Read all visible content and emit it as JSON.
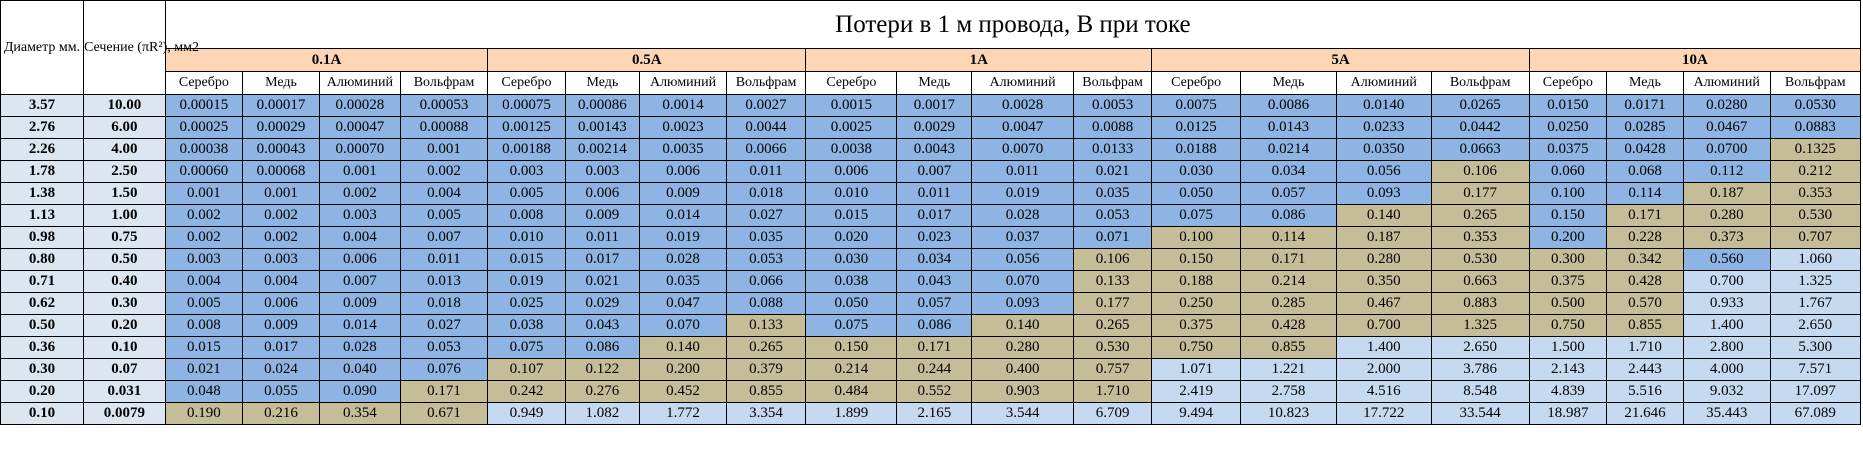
{
  "header": {
    "diameter_label": "Диаметр мм.",
    "section_label": "Сечение (πR²), мм2",
    "title": "Потери в 1 м провода, В при токе"
  },
  "currents": [
    "0.1A",
    "0.5A",
    "1A",
    "5A",
    "10A"
  ],
  "materials": [
    "Серебро",
    "Медь",
    "Алюминий",
    "Вольфрам"
  ],
  "colors": {
    "blue": "#8db4e2",
    "tan": "#c4bd97",
    "light": "#c5d9f1",
    "current_header": "#fcd5b4",
    "left_column": "#dce6f1"
  },
  "rows": [
    {
      "diameter": "3.57",
      "section": "10.00",
      "values": [
        "0.00015",
        "0.00017",
        "0.00028",
        "0.00053",
        "0.00075",
        "0.00086",
        "0.0014",
        "0.0027",
        "0.0015",
        "0.0017",
        "0.0028",
        "0.0053",
        "0.0075",
        "0.0086",
        "0.0140",
        "0.0265",
        "0.0150",
        "0.0171",
        "0.0280",
        "0.0530"
      ],
      "shades": "bbbbbbbbbbbbbbbbbbbb"
    },
    {
      "diameter": "2.76",
      "section": "6.00",
      "values": [
        "0.00025",
        "0.00029",
        "0.00047",
        "0.00088",
        "0.00125",
        "0.00143",
        "0.0023",
        "0.0044",
        "0.0025",
        "0.0029",
        "0.0047",
        "0.0088",
        "0.0125",
        "0.0143",
        "0.0233",
        "0.0442",
        "0.0250",
        "0.0285",
        "0.0467",
        "0.0883"
      ],
      "shades": "bbbbbbbbbbbbbbbbbbbb"
    },
    {
      "diameter": "2.26",
      "section": "4.00",
      "values": [
        "0.00038",
        "0.00043",
        "0.00070",
        "0.001",
        "0.00188",
        "0.00214",
        "0.0035",
        "0.0066",
        "0.0038",
        "0.0043",
        "0.0070",
        "0.0133",
        "0.0188",
        "0.0214",
        "0.0350",
        "0.0663",
        "0.0375",
        "0.0428",
        "0.0700",
        "0.1325"
      ],
      "shades": "bbbbbbbbbbbbbbbbbbbt"
    },
    {
      "diameter": "1.78",
      "section": "2.50",
      "values": [
        "0.00060",
        "0.00068",
        "0.001",
        "0.002",
        "0.003",
        "0.003",
        "0.006",
        "0.011",
        "0.006",
        "0.007",
        "0.011",
        "0.021",
        "0.030",
        "0.034",
        "0.056",
        "0.106",
        "0.060",
        "0.068",
        "0.112",
        "0.212"
      ],
      "shades": "bbbbbbbbbbbbbbbtbbbt"
    },
    {
      "diameter": "1.38",
      "section": "1.50",
      "values": [
        "0.001",
        "0.001",
        "0.002",
        "0.004",
        "0.005",
        "0.006",
        "0.009",
        "0.018",
        "0.010",
        "0.011",
        "0.019",
        "0.035",
        "0.050",
        "0.057",
        "0.093",
        "0.177",
        "0.100",
        "0.114",
        "0.187",
        "0.353"
      ],
      "shades": "bbbbbbbbbbbbbbbtbbtt"
    },
    {
      "diameter": "1.13",
      "section": "1.00",
      "values": [
        "0.002",
        "0.002",
        "0.003",
        "0.005",
        "0.008",
        "0.009",
        "0.014",
        "0.027",
        "0.015",
        "0.017",
        "0.028",
        "0.053",
        "0.075",
        "0.086",
        "0.140",
        "0.265",
        "0.150",
        "0.171",
        "0.280",
        "0.530"
      ],
      "shades": "bbbbbbbbbbbbbbttbttt"
    },
    {
      "diameter": "0.98",
      "section": "0.75",
      "values": [
        "0.002",
        "0.002",
        "0.004",
        "0.007",
        "0.010",
        "0.011",
        "0.019",
        "0.035",
        "0.020",
        "0.023",
        "0.037",
        "0.071",
        "0.100",
        "0.114",
        "0.187",
        "0.353",
        "0.200",
        "0.228",
        "0.373",
        "0.707"
      ],
      "shades": "bbbbbbbbbbbbttttbttt"
    },
    {
      "diameter": "0.80",
      "section": "0.50",
      "values": [
        "0.003",
        "0.003",
        "0.006",
        "0.011",
        "0.015",
        "0.017",
        "0.028",
        "0.053",
        "0.030",
        "0.034",
        "0.056",
        "0.106",
        "0.150",
        "0.171",
        "0.280",
        "0.530",
        "0.300",
        "0.342",
        "0.560",
        "1.060"
      ],
      "shades": "bbbbbbbbbbbtttttttbl"
    },
    {
      "diameter": "0.71",
      "section": "0.40",
      "values": [
        "0.004",
        "0.004",
        "0.007",
        "0.013",
        "0.019",
        "0.021",
        "0.035",
        "0.066",
        "0.038",
        "0.043",
        "0.070",
        "0.133",
        "0.188",
        "0.214",
        "0.350",
        "0.663",
        "0.375",
        "0.428",
        "0.700",
        "1.325"
      ],
      "shades": "bbbbbbbbbbbtttttttll"
    },
    {
      "diameter": "0.62",
      "section": "0.30",
      "values": [
        "0.005",
        "0.006",
        "0.009",
        "0.018",
        "0.025",
        "0.029",
        "0.047",
        "0.088",
        "0.050",
        "0.057",
        "0.093",
        "0.177",
        "0.250",
        "0.285",
        "0.467",
        "0.883",
        "0.500",
        "0.570",
        "0.933",
        "1.767"
      ],
      "shades": "bbbbbbbbbbbtttttttll"
    },
    {
      "diameter": "0.50",
      "section": "0.20",
      "values": [
        "0.008",
        "0.009",
        "0.014",
        "0.027",
        "0.038",
        "0.043",
        "0.070",
        "0.133",
        "0.075",
        "0.086",
        "0.140",
        "0.265",
        "0.375",
        "0.428",
        "0.700",
        "1.325",
        "0.750",
        "0.855",
        "1.400",
        "2.650"
      ],
      "shades": "bbbbbbbtbbttttttttll"
    },
    {
      "diameter": "0.36",
      "section": "0.10",
      "values": [
        "0.015",
        "0.017",
        "0.028",
        "0.053",
        "0.075",
        "0.086",
        "0.140",
        "0.265",
        "0.150",
        "0.171",
        "0.280",
        "0.530",
        "0.750",
        "0.855",
        "1.400",
        "2.650",
        "1.500",
        "1.710",
        "2.800",
        "5.300"
      ],
      "shades": "bbbbbbttttttttllllll"
    },
    {
      "diameter": "0.30",
      "section": "0.07",
      "values": [
        "0.021",
        "0.024",
        "0.040",
        "0.076",
        "0.107",
        "0.122",
        "0.200",
        "0.379",
        "0.214",
        "0.244",
        "0.400",
        "0.757",
        "1.071",
        "1.221",
        "2.000",
        "3.786",
        "2.143",
        "2.443",
        "4.000",
        "7.571"
      ],
      "shades": "bbbbttttttttllllllll"
    },
    {
      "diameter": "0.20",
      "section": "0.031",
      "values": [
        "0.048",
        "0.055",
        "0.090",
        "0.171",
        "0.242",
        "0.276",
        "0.452",
        "0.855",
        "0.484",
        "0.552",
        "0.903",
        "1.710",
        "2.419",
        "2.758",
        "4.516",
        "8.548",
        "4.839",
        "5.516",
        "9.032",
        "17.097"
      ],
      "shades": "bbbtttttttttllllllll"
    },
    {
      "diameter": "0.10",
      "section": "0.0079",
      "values": [
        "0.190",
        "0.216",
        "0.354",
        "0.671",
        "0.949",
        "1.082",
        "1.772",
        "3.354",
        "1.899",
        "2.165",
        "3.544",
        "6.709",
        "9.494",
        "10.823",
        "17.722",
        "33.544",
        "18.987",
        "21.646",
        "35.443",
        "67.089"
      ],
      "shades": "ttttllllllllllllllll"
    }
  ]
}
